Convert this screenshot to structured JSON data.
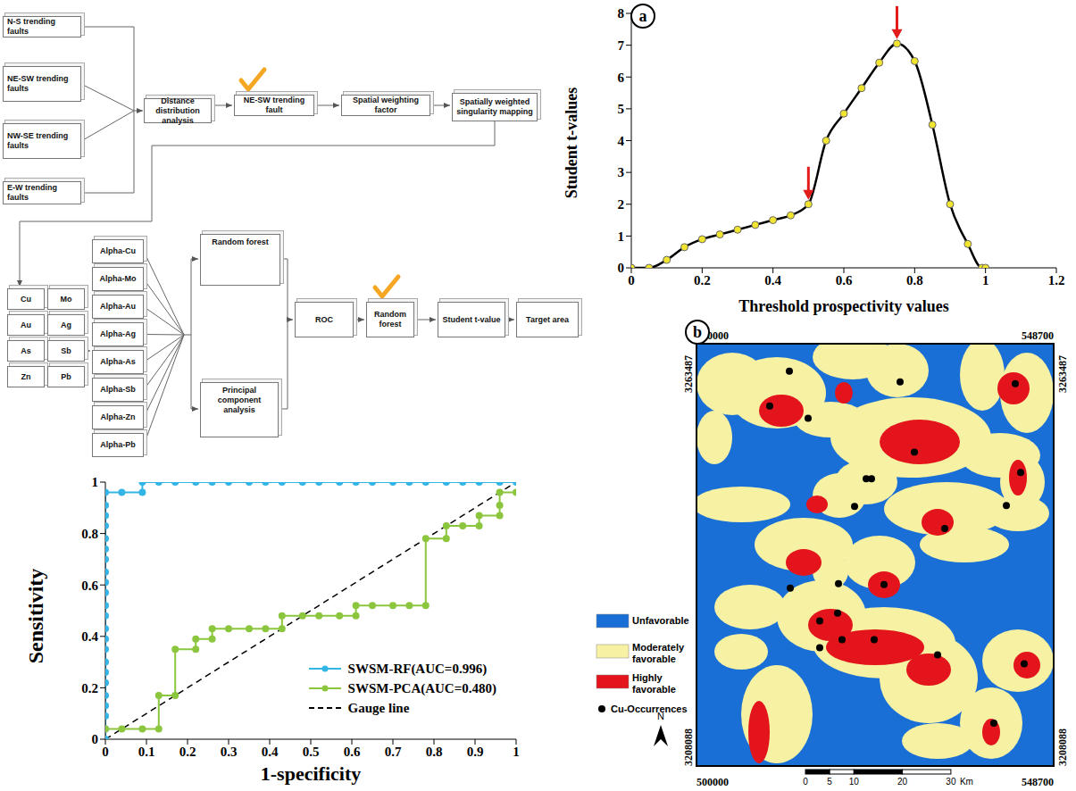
{
  "flowchart": {
    "nodes": [
      "N-S trending faults",
      "NE-SW trending faults",
      "NW-SE trending faults",
      "E-W trending faults",
      "Distance distribution analysis",
      "NE-SW trending fault",
      "Spatial weighting factor",
      "Spatially weighted singularity mapping",
      "Cu",
      "Mo",
      "Au",
      "Ag",
      "As",
      "Sb",
      "Zn",
      "Pb",
      "Alpha-Cu",
      "Alpha-Mo",
      "Alpha-Au",
      "Alpha-Ag",
      "Alpha-As",
      "Alpha-Sb",
      "Alpha-Zn",
      "Alpha-Pb",
      "Random forest",
      "Principal component analysis",
      "ROC",
      "Random forest",
      "Student t-value",
      "Target area"
    ]
  },
  "chart_data": [
    {
      "type": "line",
      "panel_label": "a",
      "x_label": "Threshold prospectivity values",
      "y_label": "Student t-values",
      "color": "#000000",
      "marker": "circle",
      "x": [
        0,
        0.05,
        0.1,
        0.15,
        0.2,
        0.25,
        0.3,
        0.35,
        0.4,
        0.45,
        0.5,
        0.55,
        0.6,
        0.65,
        0.7,
        0.75,
        0.8,
        0.85,
        0.9,
        0.95,
        0.99,
        1
      ],
      "values": [
        0,
        0,
        0.25,
        0.65,
        0.9,
        1.05,
        1.2,
        1.35,
        1.5,
        1.65,
        2.0,
        4.0,
        4.85,
        5.65,
        6.45,
        7.05,
        6.5,
        4.5,
        2.0,
        0.75,
        0,
        0
      ],
      "xlim": [
        0,
        1.2
      ],
      "xticks": [
        0,
        0.2,
        0.4,
        0.6,
        0.8,
        1,
        1.2
      ],
      "ylim": [
        0,
        8
      ],
      "yticks": [
        0,
        1,
        2,
        3,
        4,
        5,
        6,
        7,
        8
      ],
      "grid": false,
      "arrows": [
        0.5,
        0.75
      ]
    },
    {
      "type": "line",
      "x_label": "1-specificity",
      "y_label": "Sensitivity",
      "xlim": [
        0,
        1
      ],
      "xticks": [
        0,
        0.1,
        0.2,
        0.3,
        0.4,
        0.5,
        0.6,
        0.7,
        0.8,
        0.9,
        1
      ],
      "ylim": [
        0,
        1
      ],
      "yticks": [
        0,
        0.2,
        0.4,
        0.6,
        0.8,
        1
      ],
      "grid": false,
      "legend": "lower right",
      "series": [
        {
          "name": "SWSM-RF(AUC=0.996)",
          "color": "#33b5e6",
          "marker": "circle",
          "line_style": "solid",
          "x": [
            0,
            0,
            0,
            0,
            0,
            0,
            0,
            0,
            0,
            0,
            0,
            0,
            0,
            0,
            0,
            0,
            0,
            0,
            0,
            0,
            0,
            0,
            0,
            0.04,
            0.09,
            0.09,
            0.13,
            0.17,
            0.22,
            0.26,
            0.3,
            0.35,
            0.39,
            0.43,
            0.48,
            0.52,
            0.57,
            0.61,
            0.65,
            0.7,
            0.74,
            0.78,
            0.83,
            0.87,
            0.91,
            0.96,
            1
          ],
          "values": [
            0,
            0.04,
            0.09,
            0.13,
            0.17,
            0.22,
            0.26,
            0.3,
            0.35,
            0.39,
            0.43,
            0.48,
            0.52,
            0.57,
            0.61,
            0.65,
            0.7,
            0.74,
            0.78,
            0.83,
            0.87,
            0.91,
            0.96,
            0.96,
            0.96,
            1,
            1,
            1,
            1,
            1,
            1,
            1,
            1,
            1,
            1,
            1,
            1,
            1,
            1,
            1,
            1,
            1,
            1,
            1,
            1,
            1,
            1
          ]
        },
        {
          "name": "SWSM-PCA(AUC=0.480)",
          "color": "#8cc63f",
          "marker": "circle",
          "line_style": "solid",
          "x": [
            0,
            0.04,
            0.09,
            0.13,
            0.13,
            0.17,
            0.17,
            0.22,
            0.22,
            0.26,
            0.26,
            0.3,
            0.35,
            0.39,
            0.43,
            0.43,
            0.48,
            0.52,
            0.57,
            0.61,
            0.61,
            0.65,
            0.7,
            0.74,
            0.78,
            0.78,
            0.83,
            0.83,
            0.87,
            0.91,
            0.91,
            0.96,
            0.96,
            0.96,
            1
          ],
          "values": [
            0.04,
            0.04,
            0.04,
            0.04,
            0.17,
            0.17,
            0.35,
            0.35,
            0.39,
            0.39,
            0.43,
            0.43,
            0.43,
            0.43,
            0.43,
            0.48,
            0.48,
            0.48,
            0.48,
            0.48,
            0.52,
            0.52,
            0.52,
            0.52,
            0.52,
            0.78,
            0.78,
            0.83,
            0.83,
            0.83,
            0.87,
            0.87,
            0.91,
            0.96,
            0.96
          ]
        },
        {
          "name": "Gauge line",
          "color": "#000000",
          "marker": "none",
          "line_style": "dashed",
          "x": [
            0,
            1
          ],
          "values": [
            0,
            1
          ]
        }
      ]
    }
  ],
  "map": {
    "type": "map",
    "panel_label": "b",
    "xlim": [
      500000,
      548700
    ],
    "ylim": [
      3208088,
      3263487
    ],
    "xticks": [
      500000,
      548700
    ],
    "yticks": [
      3208088,
      3263487
    ],
    "classes": [
      {
        "name": "Unfavorable",
        "color": "#1a6fd6"
      },
      {
        "name": "Moderately favorable",
        "color": "#f6f1a3"
      },
      {
        "name": "Highly favorable",
        "color": "#e3141b"
      }
    ],
    "points": {
      "name": "Cu-Occurrences",
      "color": "#000000",
      "x": [
        512662,
        509984,
        515219,
        527759,
        543465,
        529707,
        544195,
        523133,
        523863,
        521550,
        542247,
        533847,
        519358,
        525568,
        512784,
        516802,
        519237,
        519845,
        524228,
        516802,
        532873,
        544682,
        540543
      ],
      "y": [
        3259872,
        3255325,
        3253693,
        3258473,
        3258240,
        3249262,
        3246580,
        3245764,
        3245764,
        3242149,
        3242266,
        3239234,
        3232005,
        3231888,
        3231422,
        3227108,
        3228158,
        3224659,
        3224659,
        3223610,
        3222677,
        3221511,
        3213699
      ]
    },
    "scale_bar": {
      "ticks": [
        0,
        5,
        10,
        20,
        30
      ],
      "unit": "Km"
    },
    "north": "N"
  }
}
